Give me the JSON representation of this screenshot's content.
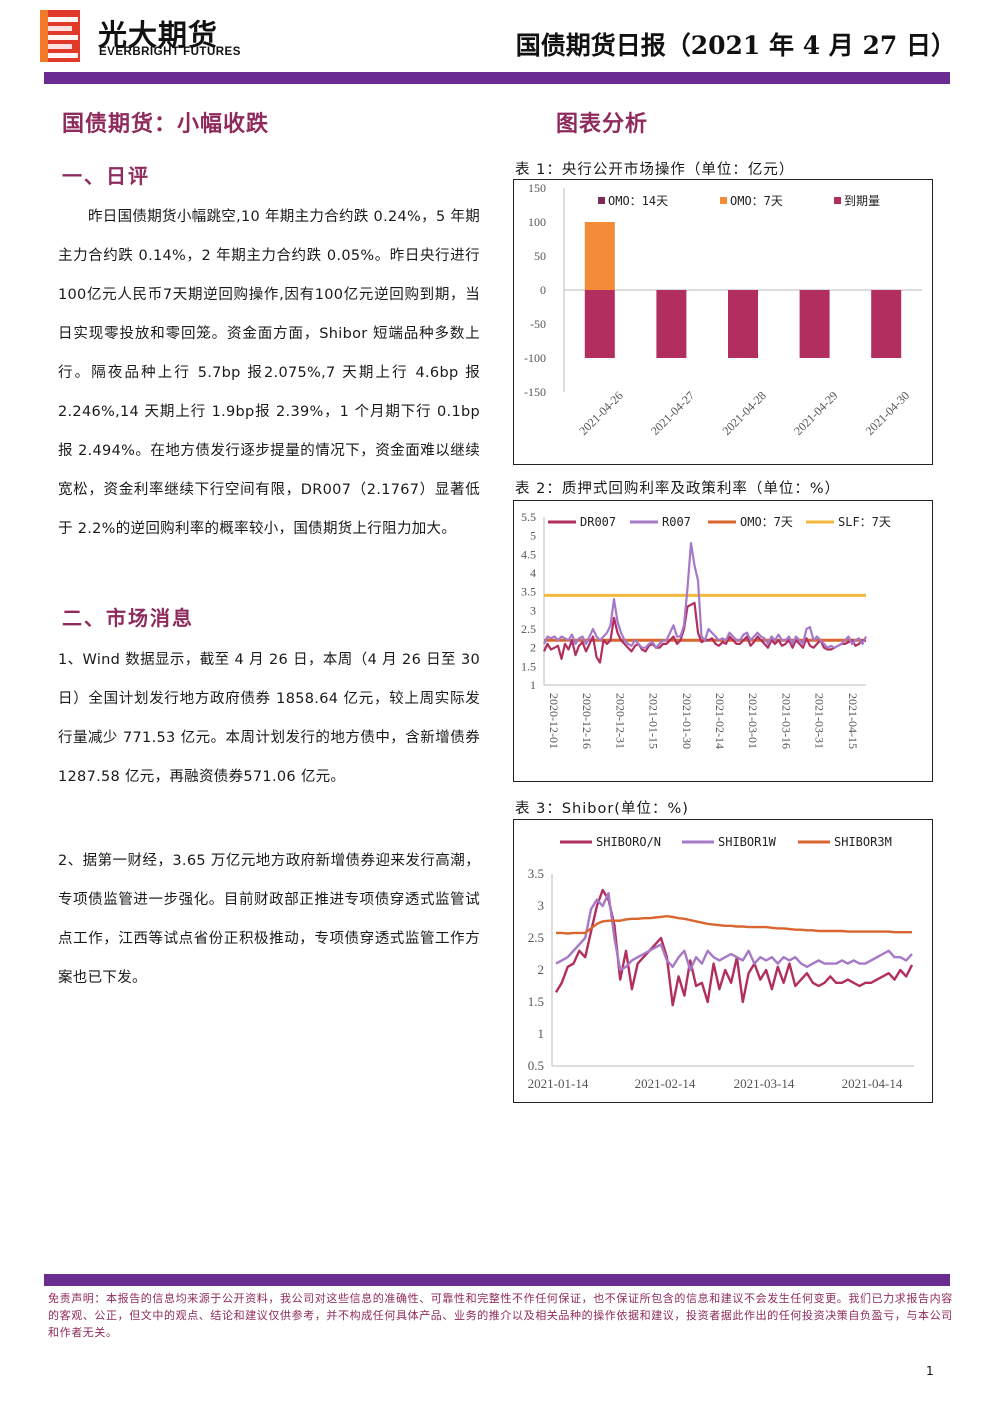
{
  "header": {
    "logo_cn": "光大期货",
    "logo_en": "EVERBRIGHT FUTURES",
    "doc_title": "国债期货日报（2021 年 4 月 27 日）",
    "band_color": "#6b2c91"
  },
  "left": {
    "headline": "国债期货：小幅收跌",
    "sec1_title": "一、日评",
    "sec1_body": "昨日国债期货小幅跳空,10 年期主力合约跌 0.24%，5 年期主力合约跌 0.14%，2 年期主力合约跌 0.05%。昨日央行进行100亿元人民币7天期逆回购操作,因有100亿元逆回购到期，当日实现零投放和零回笼。资金面方面，Shibor 短端品种多数上行。隔夜品种上行 5.7bp 报2.075%,7 天期上行 4.6bp 报 2.246%,14 天期上行 1.9bp报 2.39%，1 个月期下行 0.1bp 报 2.494%。在地方债发行逐步提量的情况下，资金面难以继续宽松，资金利率继续下行空间有限，DR007（2.1767）显著低于 2.2%的逆回购利率的概率较小，国债期货上行阻力加大。",
    "sec2_title": "二、市场消息",
    "news1": "1、Wind 数据显示，截至 4 月 26 日，本周（4 月 26 日至 30 日）全国计划发行地方政府债券 1858.64 亿元，较上周实际发行量减少 771.53 亿元。本周计划发行的地方债中，含新增债券 1287.58 亿元，再融资债券571.06 亿元。",
    "news2": "2、据第一财经，3.65 万亿元地方政府新增债券迎来发行高潮，专项债监管进一步强化。目前财政部正推进专项债穿透式监管试点工作，江西等试点省份正积极推动，专项债穿透式监管工作方案也已下发。"
  },
  "right": {
    "analysis_title": "图表分析",
    "cap1": "表 1：央行公开市场操作（单位：亿元）",
    "cap2": "表 2：质押式回购利率及政策利率（单位：%）",
    "cap3": "表 3：Shibor(单位：%)"
  },
  "footer": {
    "disclaimer": "免责声明：本报告的信息均来源于公开资料，我公司对这些信息的准确性、可靠性和完整性不作任何保证，也不保证所包含的信息和建议不会发生任何变更。我们已力求报告内容的客观、公正，但文中的观点、结论和建议仅供参考，并不构成任何具体产品、业务的推介以及相关品种的操作依据和建议，投资者据此作出的任何投资决策自负盈亏，与本公司和作者无关。",
    "page_number": "1"
  },
  "chart_data": [
    {
      "type": "bar",
      "categories": [
        "2021-04-26",
        "2021-04-27",
        "2021-04-28",
        "2021-04-29",
        "2021-04-30"
      ],
      "series": [
        {
          "name": "OMO：14天",
          "color": "#7b2c5a",
          "values": [
            0,
            0,
            0,
            0,
            0
          ]
        },
        {
          "name": "OMO：7天",
          "color": "#f28c38",
          "values": [
            100,
            0,
            0,
            0,
            0
          ]
        },
        {
          "name": "到期量",
          "color": "#b22e5e",
          "values": [
            -100,
            -100,
            -100,
            -100,
            -100
          ]
        }
      ],
      "ylim": [
        -150,
        150
      ],
      "yticks": [
        150,
        100,
        50,
        0,
        -50,
        -100,
        -150
      ],
      "legend": "top",
      "grid": false
    },
    {
      "type": "line",
      "xticks": [
        "2020-12-01",
        "2020-12-16",
        "2020-12-31",
        "2021-01-15",
        "2021-01-30",
        "2021-02-14",
        "2021-03-01",
        "2021-03-16",
        "2021-03-31",
        "2021-04-15"
      ],
      "ylim": [
        1,
        5.5
      ],
      "yticks": [
        5.5,
        5,
        4.5,
        4,
        3.5,
        3,
        2.5,
        2,
        1.5,
        1
      ],
      "legend": "top",
      "series": [
        {
          "name": "DR007",
          "color": "#b22e5e",
          "values": [
            1.9,
            2.1,
            1.95,
            2.0,
            2.05,
            1.7,
            2.1,
            1.95,
            2.2,
            1.8,
            2.05,
            2.15,
            1.9,
            2.1,
            2.3,
            1.75,
            1.6,
            2.2,
            2.1,
            2.2,
            2.8,
            2.4,
            2.2,
            2.1,
            2.0,
            1.9,
            2.05,
            2.1,
            1.95,
            1.9,
            2.05,
            2.1,
            2.0,
            2.0,
            2.1,
            2.1,
            2.2,
            2.3,
            2.1,
            2.2,
            2.5,
            3.1,
            3.15,
            3.2,
            2.4,
            2.15,
            2.2,
            2.2,
            2.25,
            2.1,
            2.05,
            2.15,
            2.1,
            2.3,
            2.2,
            2.1,
            2.1,
            2.2,
            2.3,
            2.05,
            2.15,
            2.3,
            2.2,
            2.1,
            2.0,
            2.2,
            2.1,
            2.2,
            2.05,
            2.1,
            2.2,
            2.0,
            2.2,
            2.1,
            2.0,
            2.25,
            2.05,
            2.0,
            2.1,
            2.2,
            2.0,
            1.95,
            1.95,
            2.0,
            2.05,
            2.1,
            2.1,
            2.15,
            2.2,
            2.05,
            2.1,
            2.2,
            2.18
          ]
        },
        {
          "name": "R007",
          "color": "#a678c8",
          "values": [
            2.1,
            2.3,
            2.25,
            2.3,
            2.2,
            2.3,
            2.25,
            2.2,
            2.35,
            2.1,
            2.25,
            2.3,
            2.1,
            2.3,
            2.5,
            2.3,
            2.2,
            2.3,
            2.4,
            2.6,
            3.3,
            2.7,
            2.4,
            2.2,
            2.1,
            2.05,
            2.2,
            2.1,
            2.0,
            2.0,
            2.1,
            2.15,
            2.0,
            2.1,
            2.2,
            2.2,
            2.4,
            2.6,
            2.3,
            2.3,
            2.6,
            3.6,
            4.8,
            4.2,
            3.8,
            2.3,
            2.2,
            2.5,
            2.4,
            2.3,
            2.2,
            2.25,
            2.2,
            2.4,
            2.3,
            2.2,
            2.2,
            2.35,
            2.4,
            2.2,
            2.3,
            2.4,
            2.3,
            2.25,
            2.1,
            2.3,
            2.2,
            2.35,
            2.2,
            2.2,
            2.3,
            2.1,
            2.3,
            2.2,
            2.1,
            2.5,
            2.55,
            2.2,
            2.3,
            2.2,
            2.1,
            2.0,
            2.05,
            2.0,
            2.05,
            2.1,
            2.2,
            2.3,
            2.1,
            2.2,
            2.25,
            2.1,
            2.3
          ]
        },
        {
          "name": "OMO：7天",
          "color": "#d9662e",
          "values": [
            2.2,
            2.2
          ]
        },
        {
          "name": "SLF：7天",
          "color": "#f2b93b",
          "values": [
            3.4,
            3.4
          ]
        }
      ]
    },
    {
      "type": "line",
      "xticks": [
        "2021-01-14",
        "2021-02-14",
        "2021-03-14",
        "2021-04-14"
      ],
      "ylim": [
        0.5,
        3.5
      ],
      "yticks": [
        3.5,
        3,
        2.5,
        2,
        1.5,
        1,
        0.5
      ],
      "legend": "top",
      "series": [
        {
          "name": "SHIBORO/N",
          "color": "#b22e5e",
          "values": [
            1.65,
            1.8,
            2.05,
            2.1,
            2.3,
            2.2,
            2.6,
            3.0,
            3.25,
            3.1,
            2.7,
            1.85,
            2.3,
            1.7,
            2.1,
            2.2,
            2.3,
            2.4,
            2.5,
            2.2,
            1.45,
            1.9,
            1.6,
            2.15,
            1.75,
            1.8,
            1.5,
            2.1,
            1.7,
            2.0,
            1.8,
            2.2,
            1.5,
            1.95,
            2.1,
            1.85,
            2.0,
            1.7,
            2.05,
            1.8,
            2.1,
            1.75,
            1.85,
            1.95,
            1.8,
            1.75,
            1.8,
            1.9,
            1.8,
            1.8,
            1.85,
            1.8,
            1.75,
            1.8,
            1.8,
            1.85,
            1.9,
            1.95,
            1.85,
            2.0,
            1.9,
            2.08
          ]
        },
        {
          "name": "SHIBOR1W",
          "color": "#a678c8",
          "values": [
            2.1,
            2.15,
            2.2,
            2.3,
            2.4,
            2.5,
            2.95,
            3.1,
            3.0,
            3.2,
            2.5,
            2.0,
            2.05,
            2.15,
            2.2,
            2.25,
            2.3,
            2.35,
            2.4,
            2.15,
            2.05,
            2.2,
            2.3,
            2.0,
            2.2,
            2.1,
            2.3,
            2.2,
            2.15,
            2.2,
            2.25,
            2.2,
            2.15,
            2.3,
            2.1,
            2.2,
            2.15,
            2.2,
            2.1,
            2.2,
            2.15,
            2.2,
            2.1,
            2.05,
            2.1,
            2.15,
            2.1,
            2.1,
            2.1,
            2.15,
            2.1,
            2.15,
            2.1,
            2.1,
            2.15,
            2.2,
            2.25,
            2.3,
            2.2,
            2.2,
            2.15,
            2.25
          ]
        },
        {
          "name": "SHIBOR3M",
          "color": "#d9662e",
          "values": [
            2.58,
            2.58,
            2.57,
            2.58,
            2.58,
            2.58,
            2.65,
            2.72,
            2.76,
            2.77,
            2.77,
            2.77,
            2.79,
            2.8,
            2.8,
            2.81,
            2.81,
            2.82,
            2.83,
            2.84,
            2.83,
            2.81,
            2.8,
            2.78,
            2.76,
            2.74,
            2.72,
            2.71,
            2.7,
            2.69,
            2.69,
            2.68,
            2.68,
            2.67,
            2.67,
            2.67,
            2.67,
            2.66,
            2.65,
            2.65,
            2.64,
            2.63,
            2.63,
            2.62,
            2.62,
            2.61,
            2.61,
            2.61,
            2.61,
            2.61,
            2.6,
            2.6,
            2.6,
            2.6,
            2.6,
            2.6,
            2.6,
            2.6,
            2.59,
            2.59,
            2.59,
            2.59
          ]
        }
      ]
    }
  ]
}
